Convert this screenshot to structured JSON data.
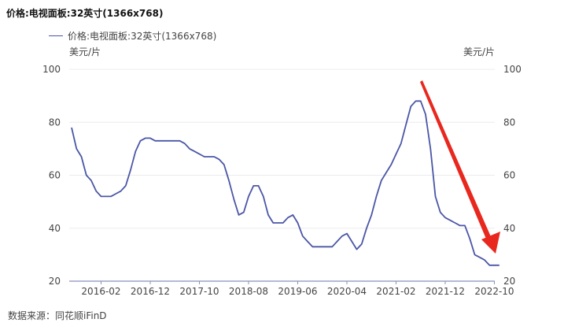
{
  "chart_data": {
    "type": "line",
    "title": "价格:电视面板:32英寸(1366x768)",
    "ylabel_left": "美元/片",
    "ylabel_right": "美元/片",
    "ylim": [
      20,
      100
    ],
    "yticks": [
      20,
      40,
      60,
      80,
      100
    ],
    "grid": true,
    "legend_position": "top-left",
    "source": "数据来源：同花顺iFinD",
    "xtick_labels": [
      "2016-02",
      "2016-12",
      "2017-10",
      "2018-08",
      "2019-06",
      "2020-04",
      "2021-02",
      "2021-12",
      "2022-10"
    ],
    "series": [
      {
        "name": "价格:电视面板:32英寸(1366x768)",
        "color": "#4A56A6",
        "points": [
          [
            "2015-08",
            78
          ],
          [
            "2015-09",
            70
          ],
          [
            "2015-10",
            67
          ],
          [
            "2015-11",
            60
          ],
          [
            "2015-12",
            58
          ],
          [
            "2016-01",
            54
          ],
          [
            "2016-02",
            52
          ],
          [
            "2016-03",
            52
          ],
          [
            "2016-04",
            52
          ],
          [
            "2016-05",
            53
          ],
          [
            "2016-06",
            54
          ],
          [
            "2016-07",
            56
          ],
          [
            "2016-08",
            62
          ],
          [
            "2016-09",
            69
          ],
          [
            "2016-10",
            73
          ],
          [
            "2016-11",
            74
          ],
          [
            "2016-12",
            74
          ],
          [
            "2017-01",
            73
          ],
          [
            "2017-02",
            73
          ],
          [
            "2017-03",
            73
          ],
          [
            "2017-04",
            73
          ],
          [
            "2017-05",
            73
          ],
          [
            "2017-06",
            73
          ],
          [
            "2017-07",
            72
          ],
          [
            "2017-08",
            70
          ],
          [
            "2017-09",
            69
          ],
          [
            "2017-10",
            68
          ],
          [
            "2017-11",
            67
          ],
          [
            "2017-12",
            67
          ],
          [
            "2018-01",
            67
          ],
          [
            "2018-02",
            66
          ],
          [
            "2018-03",
            64
          ],
          [
            "2018-04",
            58
          ],
          [
            "2018-05",
            51
          ],
          [
            "2018-06",
            45
          ],
          [
            "2018-07",
            46
          ],
          [
            "2018-08",
            52
          ],
          [
            "2018-09",
            56
          ],
          [
            "2018-10",
            56
          ],
          [
            "2018-11",
            52
          ],
          [
            "2018-12",
            45
          ],
          [
            "2019-01",
            42
          ],
          [
            "2019-02",
            42
          ],
          [
            "2019-03",
            42
          ],
          [
            "2019-04",
            44
          ],
          [
            "2019-05",
            45
          ],
          [
            "2019-06",
            42
          ],
          [
            "2019-07",
            37
          ],
          [
            "2019-08",
            35
          ],
          [
            "2019-09",
            33
          ],
          [
            "2019-10",
            33
          ],
          [
            "2019-11",
            33
          ],
          [
            "2019-12",
            33
          ],
          [
            "2020-01",
            33
          ],
          [
            "2020-02",
            35
          ],
          [
            "2020-03",
            37
          ],
          [
            "2020-04",
            38
          ],
          [
            "2020-05",
            35
          ],
          [
            "2020-06",
            32
          ],
          [
            "2020-07",
            34
          ],
          [
            "2020-08",
            40
          ],
          [
            "2020-09",
            45
          ],
          [
            "2020-10",
            52
          ],
          [
            "2020-11",
            58
          ],
          [
            "2020-12",
            61
          ],
          [
            "2021-01",
            64
          ],
          [
            "2021-02",
            68
          ],
          [
            "2021-03",
            72
          ],
          [
            "2021-04",
            79
          ],
          [
            "2021-05",
            86
          ],
          [
            "2021-06",
            88
          ],
          [
            "2021-07",
            88
          ],
          [
            "2021-08",
            83
          ],
          [
            "2021-09",
            70
          ],
          [
            "2021-10",
            52
          ],
          [
            "2021-11",
            46
          ],
          [
            "2021-12",
            44
          ],
          [
            "2022-01",
            43
          ],
          [
            "2022-02",
            42
          ],
          [
            "2022-03",
            41
          ],
          [
            "2022-04",
            41
          ],
          [
            "2022-05",
            36
          ],
          [
            "2022-06",
            30
          ],
          [
            "2022-07",
            29
          ],
          [
            "2022-08",
            28
          ],
          [
            "2022-09",
            26
          ],
          [
            "2022-10",
            26
          ],
          [
            "2022-11",
            26
          ]
        ]
      }
    ],
    "annotation": {
      "type": "arrow",
      "color": "#E8281E",
      "meaning": "downward trend"
    }
  }
}
